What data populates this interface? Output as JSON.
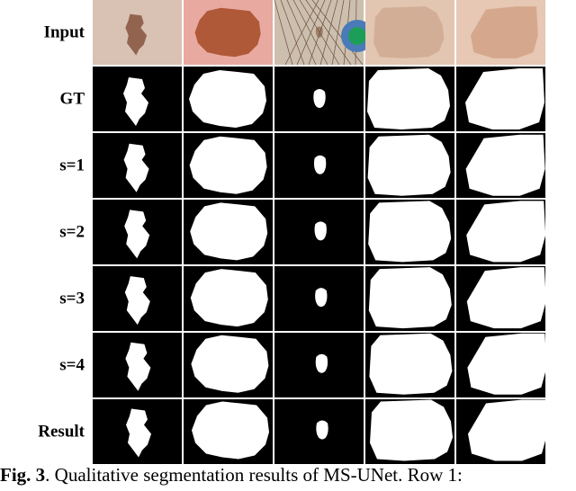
{
  "row_labels": [
    "Input",
    "GT",
    "s=1",
    "s=2",
    "s=3",
    "s=4",
    "Result"
  ],
  "caption": {
    "label": "Fig. 3",
    "text": ". Qualitative segmentation results of MS-UNet. Row 1:"
  }
}
